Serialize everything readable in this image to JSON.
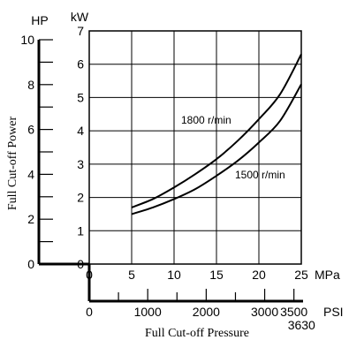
{
  "chart_data": {
    "type": "line",
    "title": "",
    "xlabel": "Full Cut-off Pressure",
    "ylabel": "Full Cut-off Power",
    "x_units": [
      "MPa",
      "PSI"
    ],
    "y_units": [
      "kW",
      "HP"
    ],
    "xlim": [
      0,
      25
    ],
    "ylim": [
      0,
      7
    ],
    "grid": true,
    "x_ticks_mpa": [
      0,
      5,
      10,
      15,
      20,
      25
    ],
    "y_ticks_kw": [
      0,
      1,
      2,
      3,
      4,
      5,
      6,
      7
    ],
    "hp_ticks": [
      "0",
      "2",
      "4",
      "6",
      "8",
      "10"
    ],
    "psi_ticks": [
      "0",
      "1000",
      "2000",
      "3000",
      "3500"
    ],
    "psi_extra_label": "3630",
    "series": [
      {
        "name": "1800 r/min",
        "points": [
          [
            5,
            1.7
          ],
          [
            7.5,
            1.95
          ],
          [
            10,
            2.3
          ],
          [
            12.5,
            2.7
          ],
          [
            15,
            3.15
          ],
          [
            17.5,
            3.7
          ],
          [
            20,
            4.35
          ],
          [
            22.5,
            5.1
          ],
          [
            25,
            6.3
          ]
        ]
      },
      {
        "name": "1500 r/min",
        "points": [
          [
            5,
            1.5
          ],
          [
            7.5,
            1.7
          ],
          [
            10,
            1.95
          ],
          [
            12.5,
            2.25
          ],
          [
            15,
            2.65
          ],
          [
            17.5,
            3.1
          ],
          [
            20,
            3.65
          ],
          [
            22.5,
            4.3
          ],
          [
            25,
            5.4
          ]
        ]
      }
    ]
  }
}
